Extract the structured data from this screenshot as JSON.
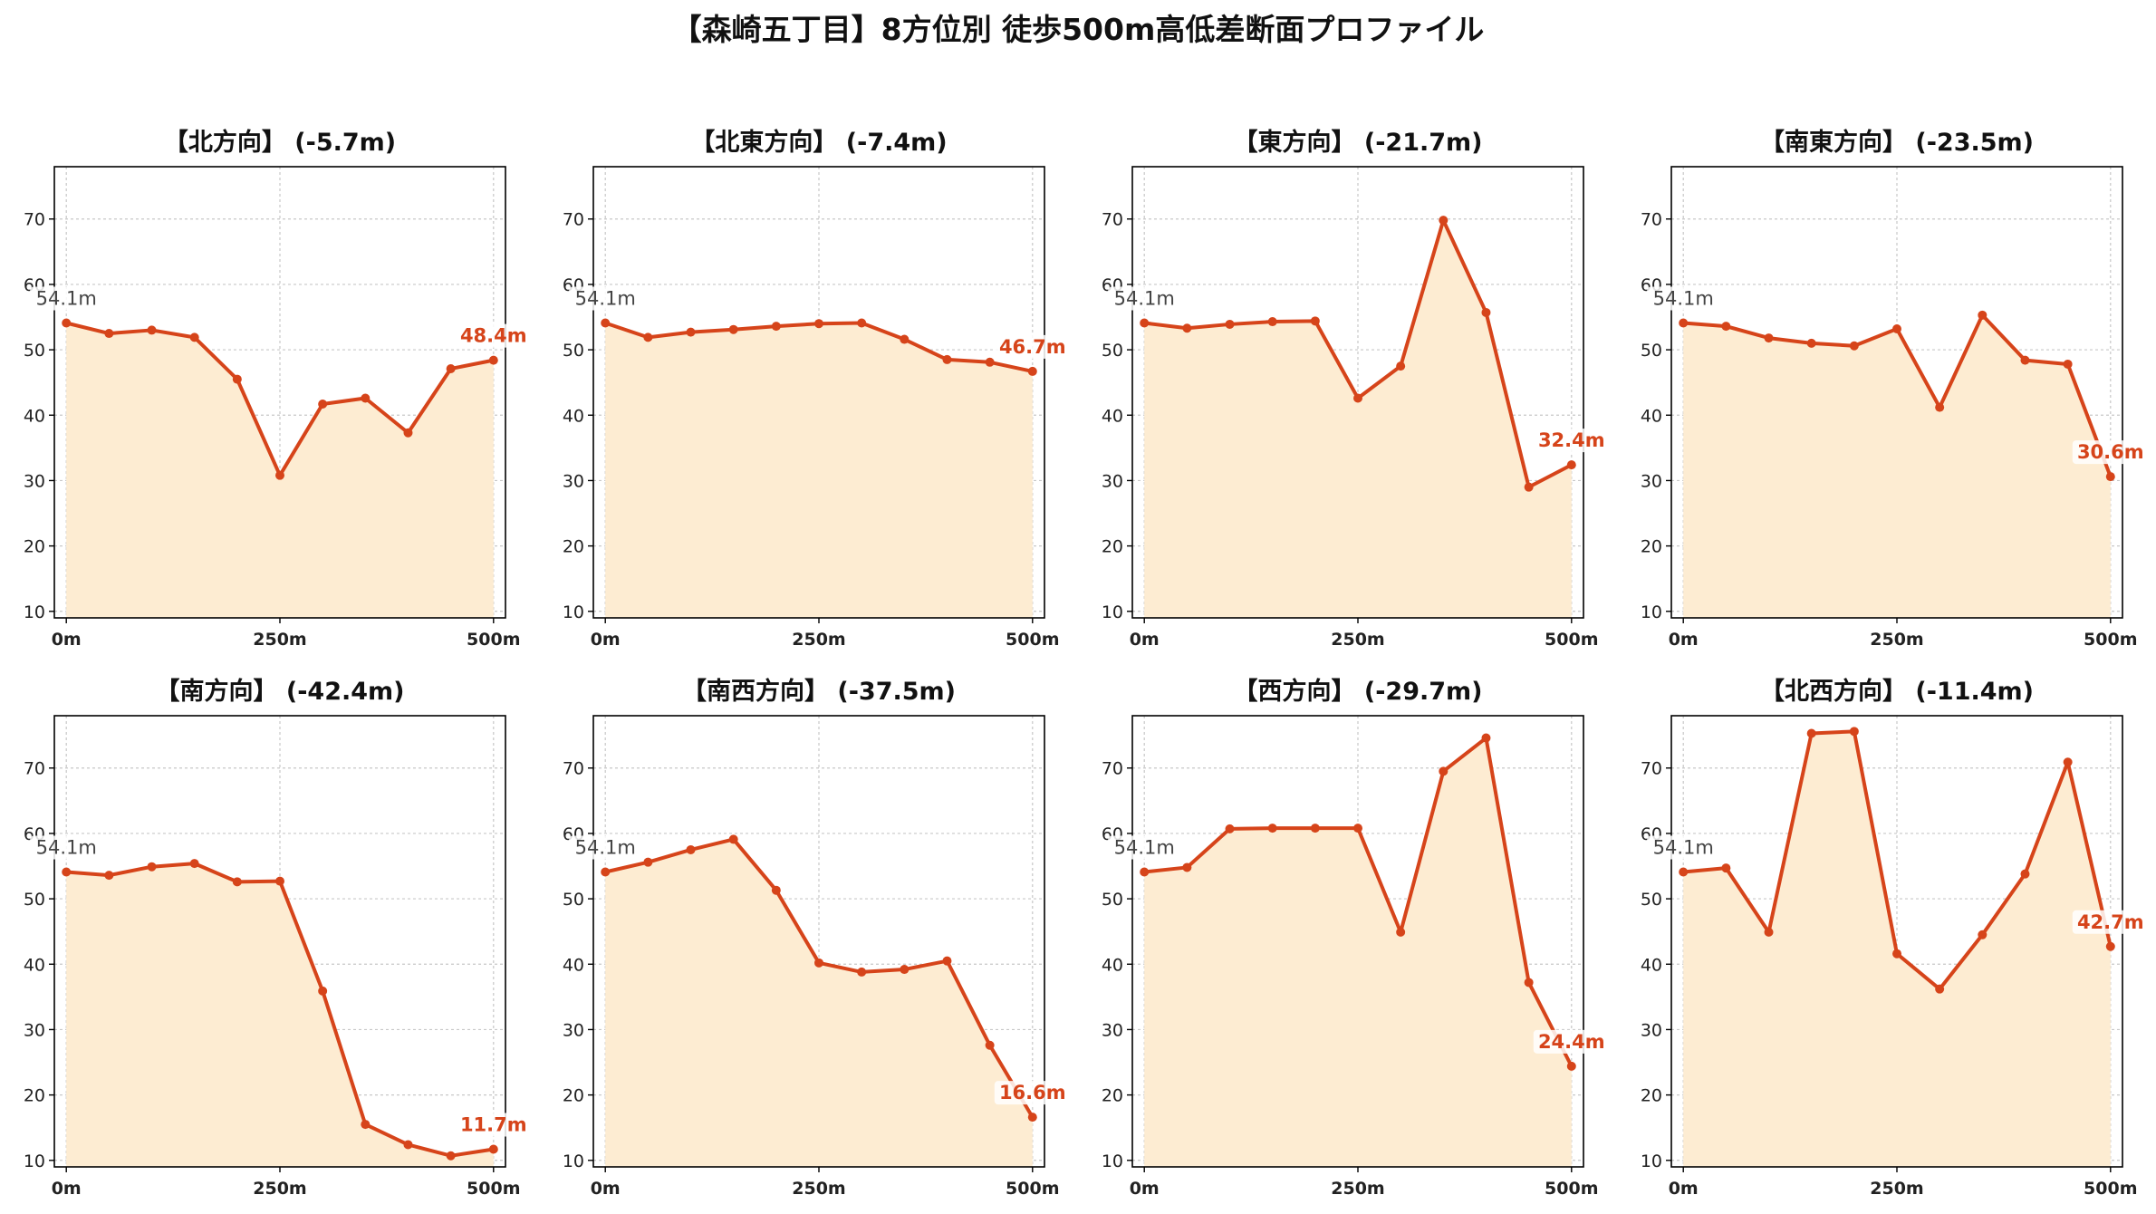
{
  "title": "【森崎五丁目】8方位別 徒歩500m高低差断面プロファイル",
  "colors": {
    "line": "#d6441a",
    "fill": "#fdecd2",
    "start_label": "#444444"
  },
  "chart_data": [
    {
      "type": "area",
      "title": "【北方向】 (-5.7m)",
      "x": [
        0,
        50,
        100,
        150,
        200,
        250,
        300,
        350,
        400,
        450,
        500
      ],
      "values": [
        54.1,
        52.5,
        53.0,
        51.9,
        45.5,
        30.8,
        41.7,
        42.6,
        37.3,
        47.1,
        48.4
      ],
      "start_label": "54.1m",
      "end_label": "48.4m",
      "ylim": [
        9,
        78
      ],
      "xlim": [
        -14,
        514
      ],
      "yticks": [
        "10",
        "20",
        "30",
        "40",
        "50",
        "60",
        "70"
      ],
      "xticks": [
        "0m",
        "250m",
        "500m"
      ],
      "grid": true
    },
    {
      "type": "area",
      "title": "【北東方向】 (-7.4m)",
      "x": [
        0,
        50,
        100,
        150,
        200,
        250,
        300,
        350,
        400,
        450,
        500
      ],
      "values": [
        54.1,
        51.9,
        52.7,
        53.1,
        53.6,
        54.0,
        54.1,
        51.6,
        48.5,
        48.1,
        46.7
      ],
      "start_label": "54.1m",
      "end_label": "46.7m",
      "ylim": [
        9,
        78
      ],
      "xlim": [
        -14,
        514
      ],
      "yticks": [
        "10",
        "20",
        "30",
        "40",
        "50",
        "60",
        "70"
      ],
      "xticks": [
        "0m",
        "250m",
        "500m"
      ],
      "grid": true
    },
    {
      "type": "area",
      "title": "【東方向】 (-21.7m)",
      "x": [
        0,
        50,
        100,
        150,
        200,
        250,
        300,
        350,
        400,
        450,
        500
      ],
      "values": [
        54.1,
        53.3,
        53.9,
        54.3,
        54.4,
        42.6,
        47.5,
        69.8,
        55.7,
        29.0,
        32.4
      ],
      "start_label": "54.1m",
      "end_label": "32.4m",
      "ylim": [
        9,
        78
      ],
      "xlim": [
        -14,
        514
      ],
      "yticks": [
        "10",
        "20",
        "30",
        "40",
        "50",
        "60",
        "70"
      ],
      "xticks": [
        "0m",
        "250m",
        "500m"
      ],
      "grid": true
    },
    {
      "type": "area",
      "title": "【南東方向】 (-23.5m)",
      "x": [
        0,
        50,
        100,
        150,
        200,
        250,
        300,
        350,
        400,
        450,
        500
      ],
      "values": [
        54.1,
        53.6,
        51.8,
        51.0,
        50.6,
        53.2,
        41.2,
        55.3,
        48.4,
        47.8,
        30.6
      ],
      "start_label": "54.1m",
      "end_label": "30.6m",
      "ylim": [
        9,
        78
      ],
      "xlim": [
        -14,
        514
      ],
      "yticks": [
        "10",
        "20",
        "30",
        "40",
        "50",
        "60",
        "70"
      ],
      "xticks": [
        "0m",
        "250m",
        "500m"
      ],
      "grid": true
    },
    {
      "type": "area",
      "title": "【南方向】 (-42.4m)",
      "x": [
        0,
        50,
        100,
        150,
        200,
        250,
        300,
        350,
        400,
        450,
        500
      ],
      "values": [
        54.1,
        53.6,
        54.9,
        55.4,
        52.6,
        52.7,
        35.9,
        15.5,
        12.4,
        10.7,
        11.7
      ],
      "start_label": "54.1m",
      "end_label": "11.7m",
      "ylim": [
        9,
        78
      ],
      "xlim": [
        -14,
        514
      ],
      "yticks": [
        "10",
        "20",
        "30",
        "40",
        "50",
        "60",
        "70"
      ],
      "xticks": [
        "0m",
        "250m",
        "500m"
      ],
      "grid": true
    },
    {
      "type": "area",
      "title": "【南西方向】 (-37.5m)",
      "x": [
        0,
        50,
        100,
        150,
        200,
        250,
        300,
        350,
        400,
        450,
        500
      ],
      "values": [
        54.1,
        55.6,
        57.5,
        59.1,
        51.3,
        40.2,
        38.8,
        39.2,
        40.5,
        27.6,
        16.6
      ],
      "start_label": "54.1m",
      "end_label": "16.6m",
      "ylim": [
        9,
        78
      ],
      "xlim": [
        -14,
        514
      ],
      "yticks": [
        "10",
        "20",
        "30",
        "40",
        "50",
        "60",
        "70"
      ],
      "xticks": [
        "0m",
        "250m",
        "500m"
      ],
      "grid": true
    },
    {
      "type": "area",
      "title": "【西方向】 (-29.7m)",
      "x": [
        0,
        50,
        100,
        150,
        200,
        250,
        300,
        350,
        400,
        450,
        500
      ],
      "values": [
        54.1,
        54.8,
        60.7,
        60.8,
        60.8,
        60.8,
        44.9,
        69.5,
        74.6,
        37.2,
        24.4
      ],
      "start_label": "54.1m",
      "end_label": "24.4m",
      "ylim": [
        9,
        78
      ],
      "xlim": [
        -14,
        514
      ],
      "yticks": [
        "10",
        "20",
        "30",
        "40",
        "50",
        "60",
        "70"
      ],
      "xticks": [
        "0m",
        "250m",
        "500m"
      ],
      "grid": true
    },
    {
      "type": "area",
      "title": "【北西方向】 (-11.4m)",
      "x": [
        0,
        50,
        100,
        150,
        200,
        250,
        300,
        350,
        400,
        450,
        500
      ],
      "values": [
        54.1,
        54.7,
        44.9,
        75.3,
        75.6,
        41.6,
        36.2,
        44.5,
        53.8,
        70.9,
        42.7
      ],
      "start_label": "54.1m",
      "end_label": "42.7m",
      "ylim": [
        9,
        78
      ],
      "xlim": [
        -14,
        514
      ],
      "yticks": [
        "10",
        "20",
        "30",
        "40",
        "50",
        "60",
        "70"
      ],
      "xticks": [
        "0m",
        "250m",
        "500m"
      ],
      "grid": true
    }
  ]
}
